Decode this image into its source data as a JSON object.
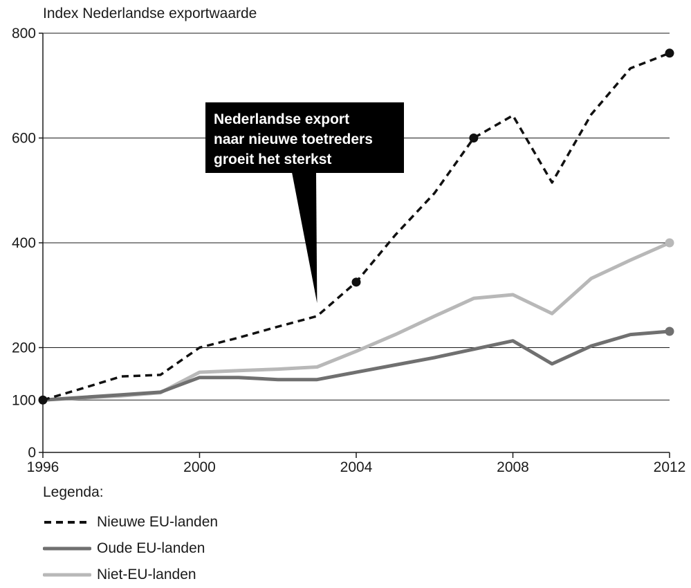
{
  "chart_data": {
    "type": "line",
    "title": "",
    "ylabel": "Index Nederlandse exportwaarde",
    "xlabel": "",
    "xlim": [
      1996,
      2012
    ],
    "ylim": [
      0,
      800
    ],
    "xticks": [
      1996,
      2000,
      2004,
      2008,
      2012
    ],
    "yticks": [
      0,
      100,
      200,
      400,
      600,
      800
    ],
    "grid": "horizontal",
    "series": [
      {
        "name": "Nieuwe EU-landen",
        "style": "dashed",
        "color": "#111111",
        "x": [
          1996,
          1997,
          1998,
          1999,
          2000,
          2001,
          2002,
          2003,
          2004,
          2005,
          2006,
          2007,
          2008,
          2009,
          2010,
          2011,
          2012
        ],
        "values": [
          100,
          122,
          145,
          148,
          200,
          219,
          240,
          260,
          325,
          415,
          495,
          600,
          643,
          515,
          645,
          733,
          762
        ],
        "markers_x": [
          1996,
          2004,
          2007,
          2012
        ]
      },
      {
        "name": "Oude EU-landen",
        "style": "solid",
        "color": "#707070",
        "x": [
          1996,
          1997,
          1998,
          1999,
          2000,
          2001,
          2002,
          2003,
          2004,
          2005,
          2006,
          2007,
          2008,
          2009,
          2010,
          2011,
          2012
        ],
        "values": [
          100,
          105,
          110,
          115,
          143,
          143,
          139,
          139,
          153,
          167,
          181,
          197,
          213,
          169,
          203,
          225,
          231
        ],
        "markers_x": [
          2012
        ]
      },
      {
        "name": "Niet-EU-landen",
        "style": "solid",
        "color": "#b8b8b8",
        "x": [
          1996,
          1997,
          1998,
          1999,
          2000,
          2001,
          2002,
          2003,
          2004,
          2005,
          2006,
          2007,
          2008,
          2009,
          2010,
          2011,
          2012
        ],
        "values": [
          100,
          104,
          108,
          114,
          153,
          156,
          159,
          163,
          193,
          225,
          260,
          294,
          301,
          265,
          332,
          367,
          400
        ],
        "markers_x": [
          2012
        ]
      }
    ],
    "annotation": {
      "lines": [
        "Nederlandse export",
        "naar nieuwe toetreders",
        "groeit het sterkst"
      ],
      "pointer_x": 2003,
      "pointer_y": 285
    },
    "legend": {
      "title": "Legenda:",
      "placement": "bottom-left"
    }
  }
}
